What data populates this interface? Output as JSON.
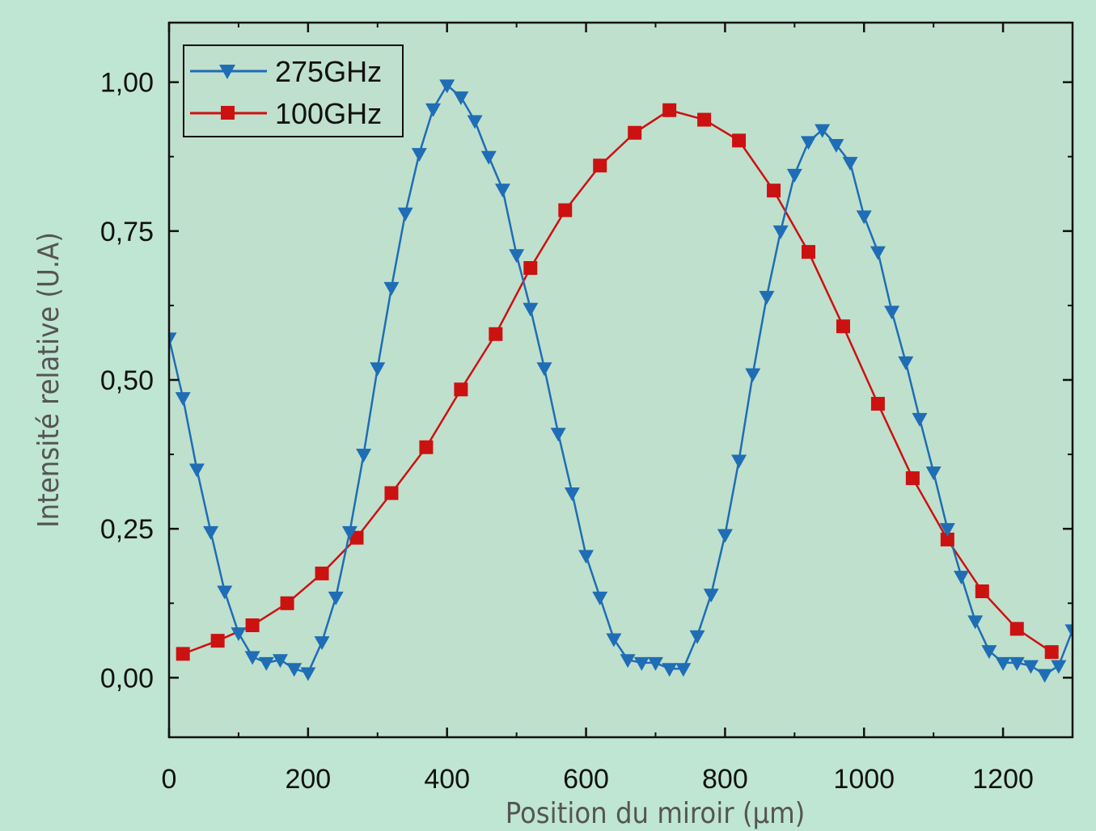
{
  "chart_data": {
    "type": "line",
    "title": "",
    "xlabel": "Position du miroir (µm)",
    "ylabel": "Intensité relative (U.A)",
    "xlim": [
      0,
      1300
    ],
    "ylim": [
      -0.1,
      1.1
    ],
    "x_ticks": [
      0,
      200,
      400,
      600,
      800,
      1000,
      1200
    ],
    "x_tick_labels": [
      "0",
      "200",
      "400",
      "600",
      "800",
      "1000",
      "1200"
    ],
    "y_ticks": [
      0,
      0.25,
      0.5,
      0.75,
      1.0
    ],
    "y_tick_labels": [
      "0,00",
      "0,25",
      "0,50",
      "0,75",
      "1,00"
    ],
    "grid": false,
    "legend_position": "top-left",
    "colors": {
      "background": "#bfe6d3",
      "plot_background": "#bfe0cd",
      "axis": "#111111"
    },
    "series": [
      {
        "name": "275GHz",
        "color": "#1f6db5",
        "marker": "triangle-down",
        "x": [
          0,
          20,
          40,
          60,
          80,
          100,
          120,
          140,
          160,
          180,
          200,
          220,
          240,
          260,
          280,
          300,
          320,
          340,
          360,
          380,
          400,
          420,
          440,
          460,
          480,
          500,
          520,
          540,
          560,
          580,
          600,
          620,
          640,
          660,
          680,
          700,
          720,
          740,
          760,
          780,
          800,
          820,
          840,
          860,
          880,
          900,
          920,
          940,
          960,
          980,
          1000,
          1020,
          1040,
          1060,
          1080,
          1100,
          1120,
          1140,
          1160,
          1180,
          1200,
          1220,
          1240,
          1260,
          1280,
          1300
        ],
        "y": [
          0.57,
          0.47,
          0.35,
          0.245,
          0.145,
          0.075,
          0.035,
          0.025,
          0.03,
          0.015,
          0.008,
          0.06,
          0.135,
          0.245,
          0.375,
          0.52,
          0.655,
          0.78,
          0.88,
          0.955,
          0.995,
          0.975,
          0.935,
          0.875,
          0.82,
          0.71,
          0.62,
          0.52,
          0.41,
          0.31,
          0.205,
          0.135,
          0.065,
          0.03,
          0.025,
          0.025,
          0.015,
          0.015,
          0.07,
          0.14,
          0.24,
          0.365,
          0.51,
          0.64,
          0.75,
          0.845,
          0.9,
          0.92,
          0.895,
          0.865,
          0.775,
          0.715,
          0.615,
          0.53,
          0.435,
          0.345,
          0.25,
          0.17,
          0.095,
          0.045,
          0.025,
          0.025,
          0.02,
          0.005,
          0.02,
          0.08
        ]
      },
      {
        "name": "100GHz",
        "color": "#cc1111",
        "marker": "square",
        "x": [
          20,
          70,
          120,
          170,
          220,
          270,
          320,
          370,
          420,
          470,
          520,
          570,
          620,
          670,
          720,
          770,
          820,
          870,
          920,
          970,
          1020,
          1070,
          1120,
          1170,
          1220,
          1270
        ],
        "y": [
          0.04,
          0.062,
          0.088,
          0.125,
          0.175,
          0.235,
          0.31,
          0.387,
          0.484,
          0.577,
          0.688,
          0.785,
          0.86,
          0.915,
          0.953,
          0.937,
          0.902,
          0.818,
          0.715,
          0.59,
          0.46,
          0.335,
          0.232,
          0.145,
          0.082,
          0.043
        ]
      }
    ]
  }
}
